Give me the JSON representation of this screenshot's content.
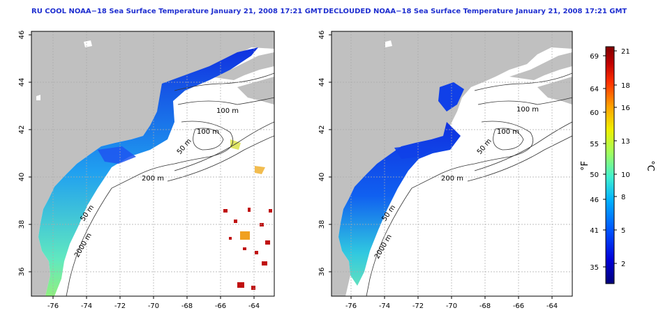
{
  "left_panel": {
    "title": "RU COOL NOAA−18 Sea Surface Temperature January 21, 2008 17:21 GMT",
    "x_ticks": [
      "-76",
      "-74",
      "-72",
      "-70",
      "-68",
      "-66",
      "-64"
    ],
    "y_ticks": [
      "36",
      "38",
      "40",
      "42",
      "44",
      "46"
    ],
    "contour_labels": [
      "100 m",
      "100 m",
      "50 m",
      "200 m",
      "50 m",
      "2000 m"
    ]
  },
  "right_panel": {
    "title": "DECLOUDED NOAA−18 Sea Surface Temperature January 21, 2008 17:21 GMT",
    "x_ticks": [
      "-76",
      "-74",
      "-72",
      "-70",
      "-68",
      "-66",
      "-64"
    ],
    "y_ticks": [
      "36",
      "38",
      "40",
      "42",
      "44",
      "46"
    ],
    "contour_labels": [
      "100 m",
      "100 m",
      "50 m",
      "200 m",
      "50 m",
      "2000 m"
    ]
  },
  "colorbar": {
    "fahrenheit_unit": "°F",
    "celsius_unit": "°C",
    "fahrenheit_ticks": [
      "69",
      "64",
      "60",
      "55",
      "50",
      "46",
      "41",
      "35"
    ],
    "celsius_ticks": [
      "21",
      "18",
      "16",
      "13",
      "10",
      "8",
      "5",
      "2"
    ],
    "colors": [
      "#00007a",
      "#0000d8",
      "#0050ff",
      "#00b0ff",
      "#40f0d0",
      "#a0ff60",
      "#f0f000",
      "#ffa000",
      "#ff3000",
      "#c00000",
      "#800000"
    ]
  },
  "map": {
    "land_color": "#c0c0c0",
    "ocean_color": "#ffffff",
    "grid_color": "#aaaaaa"
  }
}
